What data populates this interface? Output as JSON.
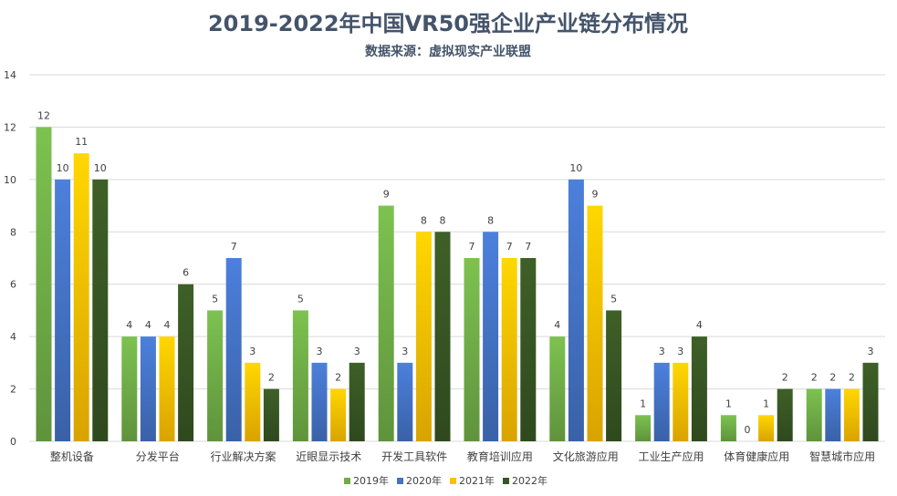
{
  "chart_data": {
    "type": "bar",
    "title": "2019-2022年中国VR50强企业产业链分布情况",
    "subtitle": "数据来源：虚拟现实产业联盟",
    "categories": [
      "整机设备",
      "分发平台",
      "行业解决方案",
      "近眼显示技术",
      "开发工具软件",
      "教育培训应用",
      "文化旅游应用",
      "工业生产应用",
      "体育健康应用",
      "智慧城市应用"
    ],
    "series": [
      {
        "name": "2019年",
        "color": "#70ad47",
        "values": [
          12,
          4,
          5,
          5,
          9,
          7,
          4,
          1,
          1,
          2
        ]
      },
      {
        "name": "2020年",
        "color": "#4472c4",
        "values": [
          10,
          4,
          7,
          3,
          3,
          8,
          10,
          3,
          0,
          2
        ]
      },
      {
        "name": "2021年",
        "color": "#ffc000",
        "values": [
          11,
          4,
          3,
          2,
          8,
          7,
          9,
          3,
          1,
          2
        ]
      },
      {
        "name": "2022年",
        "color": "#375623",
        "values": [
          10,
          6,
          2,
          3,
          8,
          7,
          5,
          4,
          2,
          3
        ]
      }
    ],
    "ylim": [
      0,
      14
    ],
    "yticks": [
      0,
      2,
      4,
      6,
      8,
      10,
      12,
      14
    ],
    "grid": true,
    "legend": "bottom-center",
    "data_labels": true
  }
}
